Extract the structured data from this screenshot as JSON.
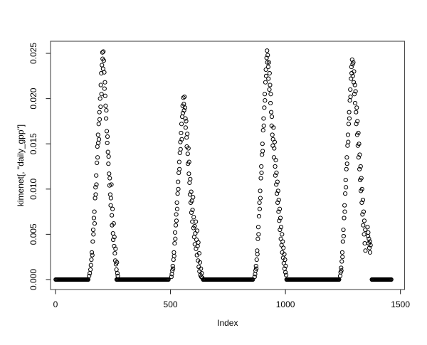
{
  "figure": {
    "kind": "r-base-scatter-plot",
    "background": "#ffffff",
    "foreground": "#000000",
    "box_color": "#4a4a4a",
    "tick_color": "#2b2b2b"
  },
  "chart_data": {
    "type": "scatter",
    "title": "",
    "xlabel": "Index",
    "ylabel": "kimenet[, \"daily_gpp\"]",
    "marker": "open-circle",
    "marker_color": "#000000",
    "grid": false,
    "legend": null,
    "xlim": [
      -22,
      1518
    ],
    "ylim": [
      -0.0011,
      0.0264
    ],
    "x_ticks": [
      0,
      500,
      1000,
      1500
    ],
    "x_tick_labels": [
      "0",
      "500",
      "1000",
      "1500"
    ],
    "y_ticks": [
      0,
      0.005,
      0.01,
      0.015,
      0.02,
      0.025
    ],
    "y_tick_labels": [
      "0.000",
      "0.005",
      "0.010",
      "0.015",
      "0.020",
      "0.025"
    ],
    "zero_runs": [
      {
        "from": 1,
        "to": 143,
        "step": 3,
        "y": 0
      },
      {
        "from": 266,
        "to": 492,
        "step": 3,
        "y": 0
      },
      {
        "from": 642,
        "to": 858,
        "step": 3,
        "y": 0
      },
      {
        "from": 1005,
        "to": 1235,
        "step": 3,
        "y": 0
      },
      {
        "from": 1376,
        "to": 1460,
        "step": 3,
        "y": 0
      }
    ],
    "points": [
      [
        146,
        0.0004
      ],
      [
        149,
        0.0007
      ],
      [
        152,
        0.0011
      ],
      [
        154,
        0.0016
      ],
      [
        156,
        0.0022
      ],
      [
        158,
        0.003
      ],
      [
        160,
        0.0027
      ],
      [
        162,
        0.0042
      ],
      [
        164,
        0.0055
      ],
      [
        165,
        0.005
      ],
      [
        167,
        0.0068
      ],
      [
        169,
        0.0075
      ],
      [
        170,
        0.0062
      ],
      [
        172,
        0.009
      ],
      [
        174,
        0.0102
      ],
      [
        175,
        0.0094
      ],
      [
        177,
        0.0115
      ],
      [
        178,
        0.0105
      ],
      [
        180,
        0.0129
      ],
      [
        182,
        0.0147
      ],
      [
        183,
        0.0135
      ],
      [
        185,
        0.016
      ],
      [
        186,
        0.0151
      ],
      [
        188,
        0.0172
      ],
      [
        189,
        0.0155
      ],
      [
        191,
        0.0185
      ],
      [
        192,
        0.0177
      ],
      [
        194,
        0.02
      ],
      [
        196,
        0.0191
      ],
      [
        197,
        0.0215
      ],
      [
        199,
        0.0228
      ],
      [
        200,
        0.0205
      ],
      [
        202,
        0.0237
      ],
      [
        204,
        0.0251
      ],
      [
        205,
        0.0244
      ],
      [
        207,
        0.0233
      ],
      [
        208,
        0.0252
      ],
      [
        210,
        0.0242
      ],
      [
        212,
        0.0229
      ],
      [
        213,
        0.0211
      ],
      [
        215,
        0.0218
      ],
      [
        216,
        0.0203
      ],
      [
        218,
        0.0192
      ],
      [
        220,
        0.0178
      ],
      [
        221,
        0.0187
      ],
      [
        223,
        0.0164
      ],
      [
        225,
        0.0151
      ],
      [
        226,
        0.0158
      ],
      [
        228,
        0.0141
      ],
      [
        230,
        0.0128
      ],
      [
        231,
        0.0136
      ],
      [
        233,
        0.0117
      ],
      [
        235,
        0.0104
      ],
      [
        236,
        0.0112
      ],
      [
        238,
        0.0094
      ],
      [
        240,
        0.0082
      ],
      [
        241,
        0.009
      ],
      [
        243,
        0.0105
      ],
      [
        245,
        0.0071
      ],
      [
        246,
        0.006
      ],
      [
        248,
        0.0078
      ],
      [
        250,
        0.0051
      ],
      [
        251,
        0.0044
      ],
      [
        253,
        0.0062
      ],
      [
        255,
        0.0037
      ],
      [
        256,
        0.0047
      ],
      [
        258,
        0.0029
      ],
      [
        260,
        0.0021
      ],
      [
        261,
        0.0034
      ],
      [
        263,
        0.0017
      ],
      [
        265,
        0.0011
      ],
      [
        267,
        0.0019
      ],
      [
        269,
        0.0007
      ],
      [
        271,
        0.0004
      ],
      [
        504,
        0.0003
      ],
      [
        506,
        0.0006
      ],
      [
        508,
        0.001
      ],
      [
        510,
        0.0015
      ],
      [
        511,
        0.0012
      ],
      [
        513,
        0.0022
      ],
      [
        515,
        0.003
      ],
      [
        516,
        0.0026
      ],
      [
        518,
        0.004
      ],
      [
        520,
        0.0052
      ],
      [
        521,
        0.0045
      ],
      [
        523,
        0.006
      ],
      [
        525,
        0.0072
      ],
      [
        526,
        0.0065
      ],
      [
        528,
        0.0085
      ],
      [
        529,
        0.0078
      ],
      [
        531,
        0.0095
      ],
      [
        533,
        0.0108
      ],
      [
        534,
        0.01
      ],
      [
        536,
        0.0118
      ],
      [
        538,
        0.013
      ],
      [
        539,
        0.0122
      ],
      [
        541,
        0.014
      ],
      [
        543,
        0.0152
      ],
      [
        544,
        0.0144
      ],
      [
        546,
        0.0162
      ],
      [
        548,
        0.0172
      ],
      [
        549,
        0.0155
      ],
      [
        551,
        0.018
      ],
      [
        553,
        0.0192
      ],
      [
        554,
        0.0184
      ],
      [
        556,
        0.0201
      ],
      [
        558,
        0.0194
      ],
      [
        559,
        0.0187
      ],
      [
        561,
        0.0202
      ],
      [
        563,
        0.019
      ],
      [
        565,
        0.0178
      ],
      [
        566,
        0.0168
      ],
      [
        568,
        0.0175
      ],
      [
        570,
        0.0157
      ],
      [
        571,
        0.0147
      ],
      [
        573,
        0.0161
      ],
      [
        575,
        0.0139
      ],
      [
        576,
        0.0128
      ],
      [
        578,
        0.0145
      ],
      [
        580,
        0.0117
      ],
      [
        581,
        0.013
      ],
      [
        583,
        0.0107
      ],
      [
        585,
        0.0094
      ],
      [
        586,
        0.0111
      ],
      [
        588,
        0.0085
      ],
      [
        590,
        0.0097
      ],
      [
        591,
        0.0074
      ],
      [
        593,
        0.0087
      ],
      [
        595,
        0.0064
      ],
      [
        596,
        0.0077
      ],
      [
        598,
        0.0091
      ],
      [
        600,
        0.0057
      ],
      [
        601,
        0.0069
      ],
      [
        603,
        0.0047
      ],
      [
        605,
        0.0059
      ],
      [
        606,
        0.0039
      ],
      [
        608,
        0.0051
      ],
      [
        610,
        0.0064
      ],
      [
        611,
        0.0034
      ],
      [
        613,
        0.0044
      ],
      [
        615,
        0.0027
      ],
      [
        616,
        0.0054
      ],
      [
        618,
        0.0037
      ],
      [
        620,
        0.0021
      ],
      [
        621,
        0.0041
      ],
      [
        623,
        0.0014
      ],
      [
        625,
        0.0029
      ],
      [
        626,
        0.0009
      ],
      [
        628,
        0.0019
      ],
      [
        630,
        0.0005
      ],
      [
        632,
        0.0012
      ],
      [
        634,
        0.0003
      ],
      [
        636,
        0.0007
      ],
      [
        638,
        0.0002
      ],
      [
        866,
        0.0003
      ],
      [
        868,
        0.0006
      ],
      [
        870,
        0.001
      ],
      [
        872,
        0.0015
      ],
      [
        873,
        0.0012
      ],
      [
        875,
        0.0022
      ],
      [
        877,
        0.0032
      ],
      [
        878,
        0.0028
      ],
      [
        880,
        0.0045
      ],
      [
        882,
        0.0058
      ],
      [
        883,
        0.005
      ],
      [
        885,
        0.007
      ],
      [
        887,
        0.0085
      ],
      [
        888,
        0.0078
      ],
      [
        890,
        0.0098
      ],
      [
        891,
        0.009
      ],
      [
        893,
        0.0112
      ],
      [
        895,
        0.0125
      ],
      [
        896,
        0.0118
      ],
      [
        898,
        0.0138
      ],
      [
        900,
        0.015
      ],
      [
        901,
        0.0142
      ],
      [
        903,
        0.0165
      ],
      [
        905,
        0.0178
      ],
      [
        906,
        0.017
      ],
      [
        908,
        0.019
      ],
      [
        910,
        0.0205
      ],
      [
        911,
        0.0198
      ],
      [
        913,
        0.0218
      ],
      [
        915,
        0.0232
      ],
      [
        916,
        0.0225
      ],
      [
        918,
        0.0245
      ],
      [
        920,
        0.0253
      ],
      [
        921,
        0.024
      ],
      [
        923,
        0.0248
      ],
      [
        925,
        0.0235
      ],
      [
        926,
        0.0222
      ],
      [
        928,
        0.024
      ],
      [
        930,
        0.021
      ],
      [
        931,
        0.0228
      ],
      [
        933,
        0.0215
      ],
      [
        935,
        0.0195
      ],
      [
        936,
        0.0205
      ],
      [
        938,
        0.0185
      ],
      [
        940,
        0.017
      ],
      [
        941,
        0.018
      ],
      [
        943,
        0.016
      ],
      [
        945,
        0.0148
      ],
      [
        946,
        0.0155
      ],
      [
        948,
        0.0168
      ],
      [
        950,
        0.0135
      ],
      [
        951,
        0.0145
      ],
      [
        953,
        0.0152
      ],
      [
        955,
        0.0125
      ],
      [
        956,
        0.0115
      ],
      [
        958,
        0.0132
      ],
      [
        960,
        0.0105
      ],
      [
        961,
        0.0118
      ],
      [
        963,
        0.0095
      ],
      [
        965,
        0.0108
      ],
      [
        966,
        0.0085
      ],
      [
        968,
        0.0098
      ],
      [
        970,
        0.0075
      ],
      [
        971,
        0.0088
      ],
      [
        973,
        0.0065
      ],
      [
        975,
        0.0078
      ],
      [
        976,
        0.0055
      ],
      [
        978,
        0.0068
      ],
      [
        980,
        0.0045
      ],
      [
        981,
        0.0058
      ],
      [
        983,
        0.0038
      ],
      [
        985,
        0.005
      ],
      [
        986,
        0.003
      ],
      [
        988,
        0.0042
      ],
      [
        990,
        0.0024
      ],
      [
        991,
        0.0035
      ],
      [
        993,
        0.0018
      ],
      [
        995,
        0.0028
      ],
      [
        996,
        0.0012
      ],
      [
        998,
        0.0022
      ],
      [
        1000,
        0.0008
      ],
      [
        1001,
        0.0015
      ],
      [
        1003,
        0.0005
      ],
      [
        1238,
        0.0004
      ],
      [
        1240,
        0.0008
      ],
      [
        1242,
        0.0013
      ],
      [
        1243,
        0.001
      ],
      [
        1245,
        0.002
      ],
      [
        1247,
        0.003
      ],
      [
        1248,
        0.0025
      ],
      [
        1250,
        0.0042
      ],
      [
        1252,
        0.0055
      ],
      [
        1253,
        0.0048
      ],
      [
        1255,
        0.0068
      ],
      [
        1257,
        0.0082
      ],
      [
        1258,
        0.0075
      ],
      [
        1260,
        0.0095
      ],
      [
        1262,
        0.011
      ],
      [
        1263,
        0.0102
      ],
      [
        1265,
        0.0122
      ],
      [
        1267,
        0.0135
      ],
      [
        1268,
        0.0128
      ],
      [
        1270,
        0.0148
      ],
      [
        1272,
        0.016
      ],
      [
        1273,
        0.0152
      ],
      [
        1275,
        0.0172
      ],
      [
        1277,
        0.0185
      ],
      [
        1278,
        0.0178
      ],
      [
        1280,
        0.0198
      ],
      [
        1282,
        0.021
      ],
      [
        1283,
        0.0202
      ],
      [
        1285,
        0.0222
      ],
      [
        1287,
        0.0235
      ],
      [
        1288,
        0.0228
      ],
      [
        1290,
        0.0243
      ],
      [
        1292,
        0.0238
      ],
      [
        1293,
        0.0225
      ],
      [
        1295,
        0.024
      ],
      [
        1297,
        0.0218
      ],
      [
        1298,
        0.023
      ],
      [
        1300,
        0.0205
      ],
      [
        1302,
        0.0215
      ],
      [
        1303,
        0.0195
      ],
      [
        1305,
        0.0208
      ],
      [
        1307,
        0.0185
      ],
      [
        1308,
        0.0172
      ],
      [
        1310,
        0.019
      ],
      [
        1312,
        0.016
      ],
      [
        1313,
        0.0175
      ],
      [
        1315,
        0.0148
      ],
      [
        1317,
        0.0162
      ],
      [
        1318,
        0.0135
      ],
      [
        1320,
        0.015
      ],
      [
        1322,
        0.0122
      ],
      [
        1323,
        0.0138
      ],
      [
        1325,
        0.011
      ],
      [
        1327,
        0.0125
      ],
      [
        1328,
        0.0098
      ],
      [
        1330,
        0.0112
      ],
      [
        1332,
        0.0085
      ],
      [
        1333,
        0.01
      ],
      [
        1335,
        0.0072
      ],
      [
        1337,
        0.0088
      ],
      [
        1338,
        0.006
      ],
      [
        1340,
        0.0075
      ],
      [
        1342,
        0.005
      ],
      [
        1343,
        0.0065
      ],
      [
        1345,
        0.004
      ],
      [
        1347,
        0.0055
      ],
      [
        1348,
        0.0032
      ],
      [
        1357,
        0.0058
      ],
      [
        1359,
        0.0048
      ],
      [
        1360,
        0.0052
      ],
      [
        1362,
        0.004
      ],
      [
        1363,
        0.0045
      ],
      [
        1365,
        0.0035
      ],
      [
        1367,
        0.0042
      ],
      [
        1368,
        0.003
      ],
      [
        1370,
        0.0038
      ]
    ]
  }
}
